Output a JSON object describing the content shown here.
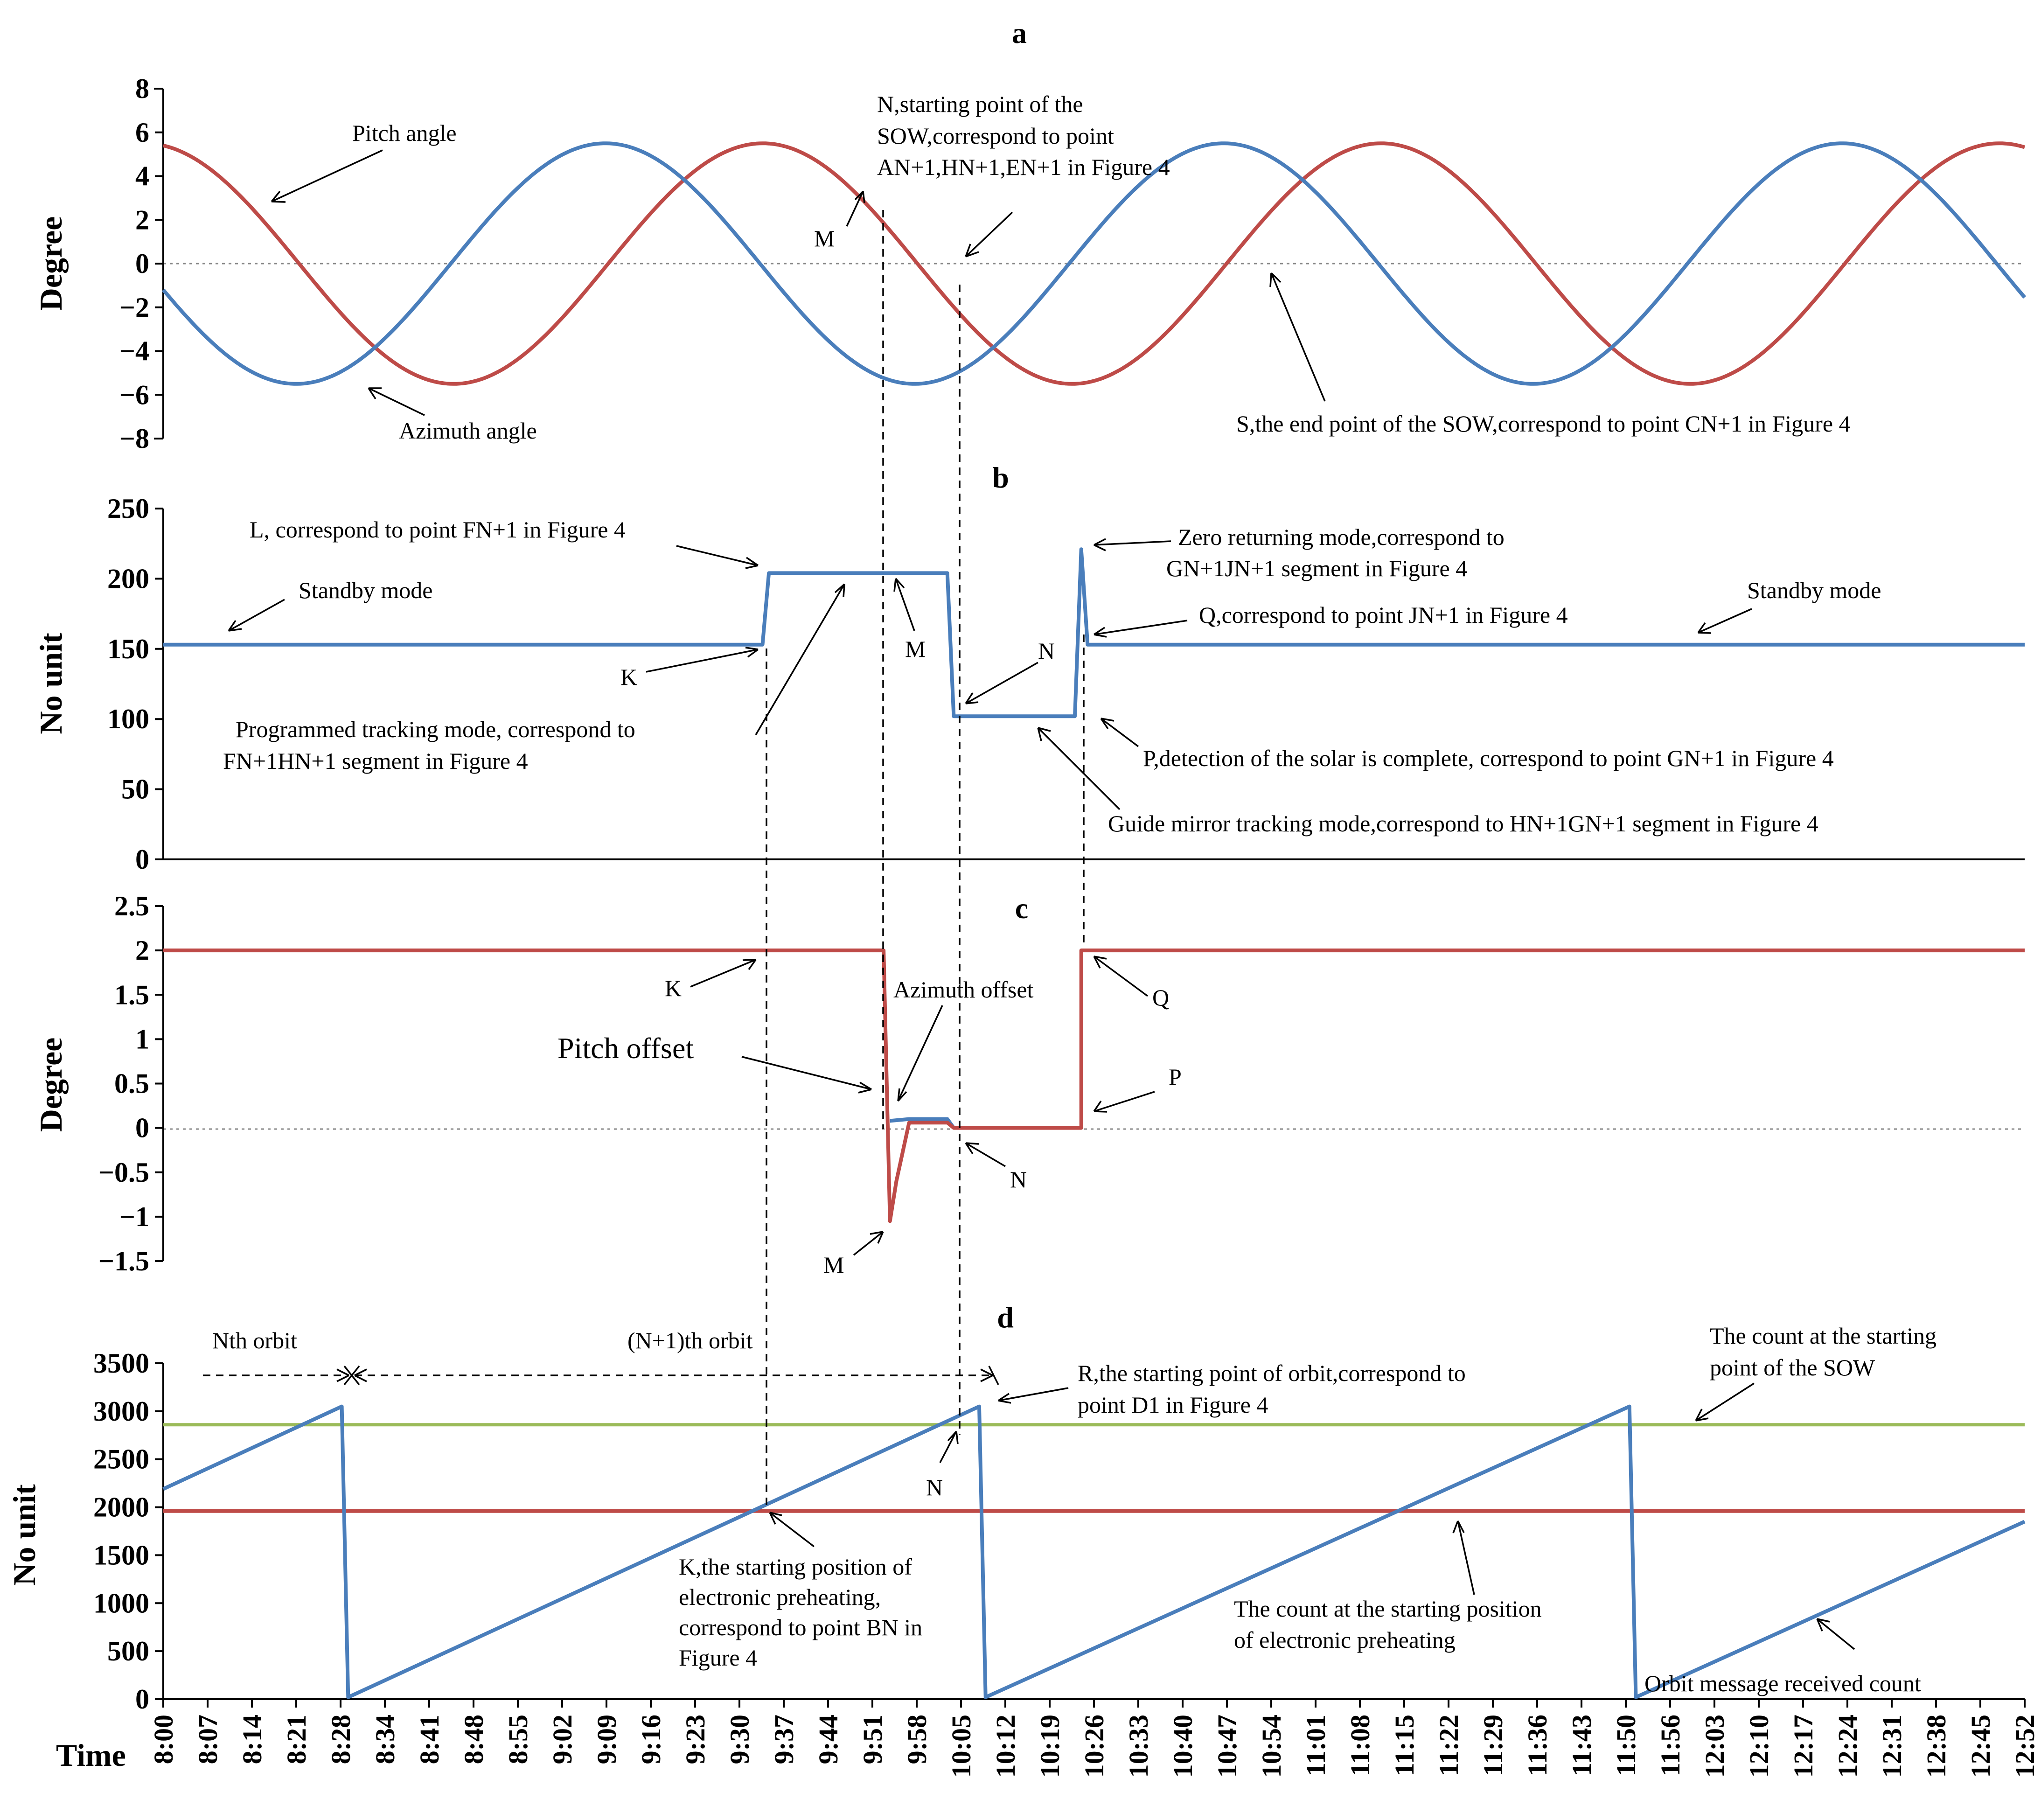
{
  "chart_data": [
    {
      "panel": "a",
      "type": "line",
      "title": "a",
      "ylabel": "Degree",
      "ylim": [
        -8,
        8
      ],
      "yticks": [
        8,
        6,
        4,
        2,
        0,
        -2,
        -4,
        -6,
        -8
      ],
      "grid": false,
      "series": [
        {
          "name": "Pitch angle",
          "color": "#be4b48",
          "function": "sine",
          "amplitude": 5.5,
          "period_min": 97,
          "value_at_8:00": 5.4,
          "peaks_at": [
            "8:00",
            "9:37",
            "11:14",
            "12:51"
          ]
        },
        {
          "name": "Azimuth angle",
          "color": "#4a7ebb",
          "function": "sine",
          "amplitude": 5.5,
          "period_min": 97,
          "value_at_8:00": -1.2,
          "troughs_at": [
            "8:25",
            "10:02",
            "11:39"
          ]
        }
      ],
      "markers": [
        "9:53",
        "10:05"
      ],
      "annotations": {
        "pitch": "Pitch angle",
        "azimuth": "Azimuth angle",
        "m": "M",
        "n_line1": "N,starting point of  the",
        "n_line2": "SOW,correspond to point",
        "n_line3": "AN+1,HN+1,EN+1 in Figure 4",
        "s": "S,the end point of  the SOW,correspond to point CN+1 in Figure 4"
      }
    },
    {
      "panel": "b",
      "type": "line",
      "title": "b",
      "ylabel": "No unit",
      "ylim": [
        0,
        250
      ],
      "yticks": [
        250,
        200,
        150,
        100,
        50,
        0
      ],
      "grid": false,
      "series": [
        {
          "name": "",
          "color": "#4a7ebb",
          "points": [
            [
              "8:00",
              153
            ],
            [
              "9:34",
              153
            ],
            [
              "9:35",
              204
            ],
            [
              "10:03",
              204
            ],
            [
              "10:04",
              102
            ],
            [
              "10:23",
              102
            ],
            [
              "10:24",
              221
            ],
            [
              "10:25",
              153
            ],
            [
              "12:52",
              153
            ]
          ]
        }
      ],
      "annotations": {
        "l": "L, correspond to point FN+1 in Figure 4",
        "standby1": "Standby mode",
        "standby2": "Standby mode",
        "k": "K",
        "m": "M",
        "n": "N",
        "zero1": "Zero returning mode,correspond to",
        "zero2": "GN+1JN+1 segment in Figure 4",
        "q": "Q,correspond to point JN+1 in Figure 4",
        "prog1": "Programmed tracking mode, correspond to",
        "prog2": "FN+1HN+1 segment in Figure 4",
        "p": "P,detection of the solar is complete,  correspond to point GN+1 in Figure 4",
        "guide": "Guide mirror  tracking mode,correspond  to HN+1GN+1 segment in Figure 4"
      }
    },
    {
      "panel": "c",
      "type": "line",
      "title": "c",
      "ylabel": "Degree",
      "ylim": [
        -1.5,
        2.5
      ],
      "yticks": [
        2.5,
        2,
        1.5,
        1,
        0.5,
        0,
        -0.5,
        -1,
        -1.5
      ],
      "grid": false,
      "series": [
        {
          "name": "Pitch offset",
          "color": "#be4b48",
          "points": [
            [
              "8:00",
              2
            ],
            [
              "9:53",
              2
            ],
            [
              "9:54",
              -1.05
            ],
            [
              "9:55",
              -0.6
            ],
            [
              "9:57",
              0.06
            ],
            [
              "10:03",
              0.06
            ],
            [
              "10:04",
              0
            ],
            [
              "10:24",
              0
            ],
            [
              "10:24",
              2
            ],
            [
              "12:52",
              2
            ]
          ]
        },
        {
          "name": "Azimuth offset",
          "color": "#4a7ebb",
          "points": [
            [
              "9:54",
              0.08
            ],
            [
              "9:57",
              0.1
            ],
            [
              "10:03",
              0.1
            ],
            [
              "10:04",
              0
            ]
          ]
        }
      ],
      "annotations": {
        "k": "K",
        "azimuth": "Azimuth offset",
        "q": "Q",
        "pitch": "Pitch offset",
        "p": "P",
        "n": "N",
        "m": "M"
      }
    },
    {
      "panel": "d",
      "type": "line",
      "title": "d",
      "ylabel": "No unit",
      "xlabel": "Time",
      "ylim": [
        0,
        3500
      ],
      "yticks": [
        3500,
        3000,
        2500,
        2000,
        1500,
        1000,
        500,
        0
      ],
      "grid": false,
      "series": [
        {
          "name": "Orbit message received count",
          "color": "#4a7ebb",
          "points": [
            [
              "8:00",
              2190
            ],
            [
              "8:28",
              3050
            ],
            [
              "8:29",
              20
            ],
            [
              "10:08",
              3050
            ],
            [
              "10:09",
              20
            ],
            [
              "11:50",
              3050
            ],
            [
              "11:51",
              20
            ],
            [
              "12:52",
              1850
            ]
          ]
        },
        {
          "name": "The count at the starting point of the SOW",
          "color": "#9bbb59",
          "value": 2860
        },
        {
          "name": "The count at the starting position of electronic preheating",
          "color": "#be4b48",
          "value": 1960
        }
      ],
      "annotations": {
        "nth": "Nth orbit",
        "n1th": "(N+1)th orbit",
        "r1": "R,the starting point of  orbit,correspond to",
        "r2": "point D1 in Figure 4",
        "sow1": "The count at the starting",
        "sow2": "point of the SOW",
        "n": "N",
        "k1": "K,the starting position of",
        "k2": "electronic preheating,",
        "k3": "correspond to point BN in",
        "k4": "Figure 4",
        "pre1": "The count at the starting position",
        "pre2": "of electronic preheating",
        "orbit": "Orbit message received count"
      }
    }
  ],
  "x_axis": {
    "label": "Time",
    "start": "8:00",
    "end": "12:52",
    "ticks": [
      "8:00",
      "8:07",
      "8:14",
      "8:21",
      "8:28",
      "8:34",
      "8:41",
      "8:48",
      "8:55",
      "9:02",
      "9:09",
      "9:16",
      "9:23",
      "9:30",
      "9:37",
      "9:44",
      "9:51",
      "9:58",
      "10:05",
      "10:12",
      "10:19",
      "10:26",
      "10:33",
      "10:40",
      "10:47",
      "10:54",
      "11:01",
      "11:08",
      "11:15",
      "11:22",
      "11:29",
      "11:36",
      "11:43",
      "11:50",
      "11:56",
      "12:03",
      "12:10",
      "12:17",
      "12:24",
      "12:31",
      "12:38",
      "12:45",
      "12:52"
    ]
  },
  "vertical_markers": [
    "9:35",
    "9:53",
    "10:05",
    "10:24"
  ]
}
